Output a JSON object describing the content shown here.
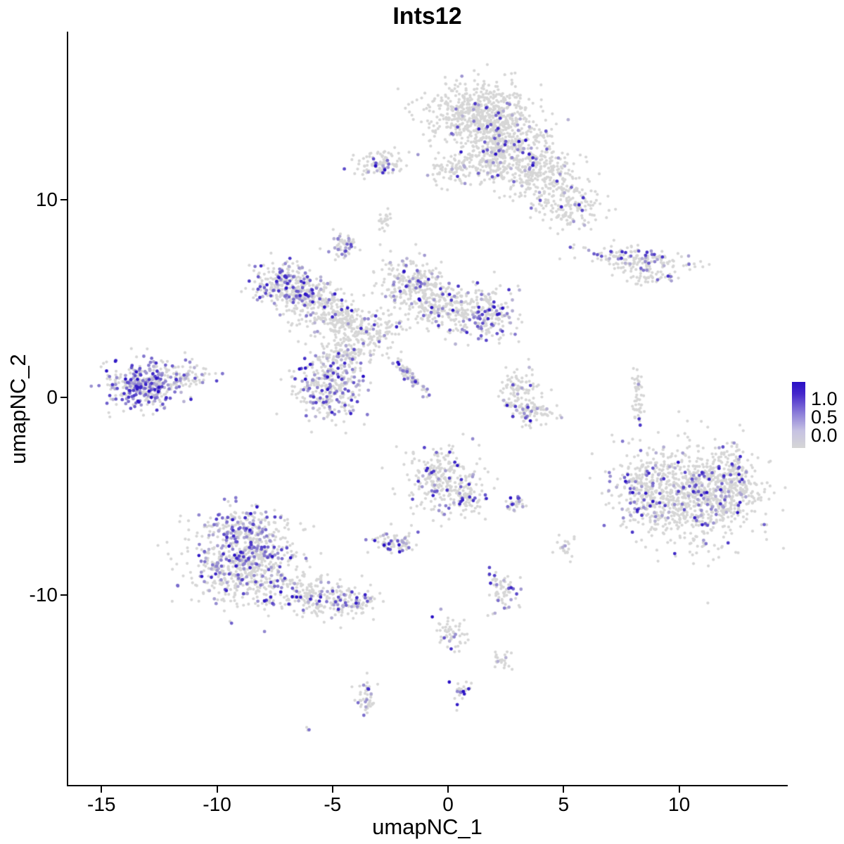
{
  "chart_data": {
    "type": "scatter",
    "title": "Ints12",
    "xlabel": "umapNC_1",
    "ylabel": "umapNC_2",
    "xlim": [
      -16.5,
      14.7
    ],
    "ylim": [
      -19.7,
      18.5
    ],
    "x_ticks": [
      "-15",
      "-10",
      "-5",
      "0",
      "5",
      "10"
    ],
    "x_tick_values": [
      -15,
      -10,
      -5,
      0,
      5,
      10
    ],
    "y_ticks": [
      "10",
      "0",
      "-10"
    ],
    "y_tick_values": [
      10,
      0,
      -10
    ],
    "grid": false,
    "legend": {
      "position": "right",
      "labels": [
        "1.0",
        "0.5",
        "0.0"
      ],
      "values": [
        1.0,
        0.5,
        0.0
      ],
      "color_high": "#280fc5",
      "color_low": "#d6d6d6"
    },
    "point_color_zero": "#d6d6d6",
    "point_color_max": "#280fc5",
    "point_radius_px": 2.1,
    "clusters_format": [
      "center_x",
      "center_y",
      "spread_x",
      "spread_y",
      "rotation_deg",
      "n_cells",
      "expressed_fraction"
    ],
    "clusters": [
      [
        1.2,
        14.4,
        1.15,
        0.75,
        0,
        520,
        0.06
      ],
      [
        2.4,
        12.9,
        0.95,
        0.85,
        0,
        340,
        0.07
      ],
      [
        3.9,
        11.3,
        0.85,
        0.8,
        0,
        280,
        0.07
      ],
      [
        5.2,
        9.7,
        0.7,
        0.55,
        0,
        150,
        0.06
      ],
      [
        0.2,
        11.5,
        0.55,
        0.4,
        0,
        90,
        0.06
      ],
      [
        -2.9,
        11.8,
        0.6,
        0.35,
        0,
        100,
        0.14
      ],
      [
        2.0,
        11.9,
        0.5,
        0.6,
        0,
        120,
        0.05
      ],
      [
        -2.8,
        8.9,
        0.18,
        0.28,
        0,
        22,
        0.08
      ],
      [
        -4.6,
        7.6,
        0.3,
        0.35,
        0,
        55,
        0.3
      ],
      [
        8.2,
        7.0,
        1.15,
        0.3,
        -8,
        170,
        0.2
      ],
      [
        8.6,
        6.1,
        0.7,
        0.15,
        0,
        45,
        0.1
      ],
      [
        -7.1,
        5.7,
        0.75,
        0.55,
        0,
        260,
        0.28
      ],
      [
        -5.8,
        4.7,
        0.7,
        0.55,
        0,
        210,
        0.12
      ],
      [
        -4.6,
        3.9,
        0.6,
        0.5,
        0,
        150,
        0.08
      ],
      [
        -1.6,
        5.7,
        0.7,
        0.65,
        0,
        250,
        0.16
      ],
      [
        -0.3,
        4.6,
        0.7,
        0.55,
        0,
        210,
        0.12
      ],
      [
        1.6,
        4.2,
        0.6,
        0.7,
        0,
        200,
        0.22
      ],
      [
        -3.2,
        3.4,
        0.55,
        0.5,
        0,
        120,
        0.08
      ],
      [
        -4.5,
        2.2,
        0.5,
        0.55,
        0,
        120,
        0.1
      ],
      [
        -13.2,
        0.6,
        0.8,
        0.55,
        0,
        360,
        0.5
      ],
      [
        -11.4,
        1.1,
        0.5,
        0.35,
        0,
        70,
        0.3
      ],
      [
        -5.2,
        0.6,
        0.75,
        0.85,
        0,
        320,
        0.3
      ],
      [
        -1.8,
        1.2,
        0.55,
        0.12,
        -52,
        70,
        0.3
      ],
      [
        2.9,
        0.5,
        0.45,
        0.45,
        0,
        85,
        0.1
      ],
      [
        3.5,
        -0.8,
        0.5,
        0.35,
        0,
        90,
        0.15
      ],
      [
        8.15,
        0.0,
        0.12,
        0.75,
        0,
        55,
        0.1
      ],
      [
        10.6,
        -5.0,
        1.4,
        1.25,
        0,
        850,
        0.13
      ],
      [
        8.5,
        -4.6,
        0.65,
        0.85,
        0,
        190,
        0.15
      ],
      [
        12.2,
        -4.3,
        0.7,
        0.75,
        0,
        190,
        0.1
      ],
      [
        -0.3,
        -4.2,
        0.75,
        0.85,
        0,
        290,
        0.15
      ],
      [
        0.7,
        -5.3,
        0.4,
        0.4,
        0,
        60,
        0.12
      ],
      [
        2.9,
        -5.4,
        0.25,
        0.2,
        0,
        28,
        0.3
      ],
      [
        -2.4,
        -7.4,
        0.45,
        0.3,
        0,
        75,
        0.3
      ],
      [
        5.0,
        -7.6,
        0.2,
        0.3,
        0,
        22,
        0.2
      ],
      [
        -8.8,
        -8.5,
        1.25,
        1.0,
        0,
        650,
        0.25
      ],
      [
        -8.9,
        -6.6,
        0.8,
        0.5,
        0,
        180,
        0.4
      ],
      [
        -5.8,
        -10.1,
        0.9,
        0.5,
        0,
        190,
        0.15
      ],
      [
        -4.2,
        -10.4,
        0.5,
        0.35,
        0,
        90,
        0.22
      ],
      [
        2.3,
        -9.9,
        0.35,
        0.5,
        0,
        65,
        0.25
      ],
      [
        0.1,
        -11.9,
        0.45,
        0.35,
        -50,
        55,
        0.15
      ],
      [
        2.3,
        -13.4,
        0.2,
        0.3,
        0,
        22,
        0.15
      ],
      [
        0.5,
        -14.9,
        0.22,
        0.3,
        0,
        28,
        0.3
      ],
      [
        -3.6,
        -15.3,
        0.25,
        0.5,
        0,
        45,
        0.2
      ],
      [
        -6.2,
        -16.9,
        0.1,
        0.1,
        0,
        4,
        0.3
      ]
    ],
    "highlight_points": [
      [
        -3.2,
        11.7
      ],
      [
        -2.8,
        11.5
      ],
      [
        3.5,
        -1.2
      ],
      [
        0.6,
        -14.9
      ],
      [
        -13.5,
        0.9
      ],
      [
        -13.0,
        0.3
      ],
      [
        2.0,
        12.3
      ],
      [
        3.3,
        13.0
      ],
      [
        9.9,
        -3.3
      ],
      [
        -8.6,
        -5.9
      ],
      [
        0.0,
        5.2
      ],
      [
        2.3,
        4.5
      ]
    ]
  }
}
